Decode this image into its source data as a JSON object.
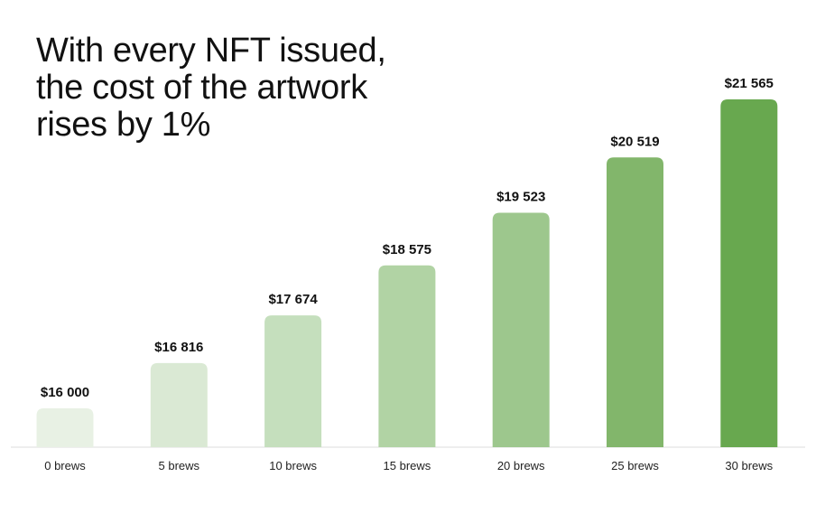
{
  "title_lines": [
    "With every NFT issued,",
    "the cost of the artwork",
    "rises by 1%"
  ],
  "chart_data": {
    "type": "bar",
    "title": "With every NFT issued, the cost of the artwork rises by 1%",
    "xlabel": "",
    "ylabel": "",
    "categories": [
      "0 brews",
      "5 brews",
      "10 brews",
      "15 brews",
      "20 brews",
      "25 brews",
      "30 brews"
    ],
    "values": [
      16000,
      16816,
      17674,
      18575,
      19523,
      20519,
      21565
    ],
    "value_labels": [
      "$16 000",
      "$16 816",
      "$17 674",
      "$18 575",
      "$19 523",
      "$20 519",
      "$21 565"
    ],
    "bar_colors": [
      "#e8f1e4",
      "#dae9d4",
      "#c5dfbd",
      "#b1d3a4",
      "#9dc78d",
      "#82b66b",
      "#68a84f"
    ],
    "axis_color": "#dddddd",
    "grid": false
  }
}
